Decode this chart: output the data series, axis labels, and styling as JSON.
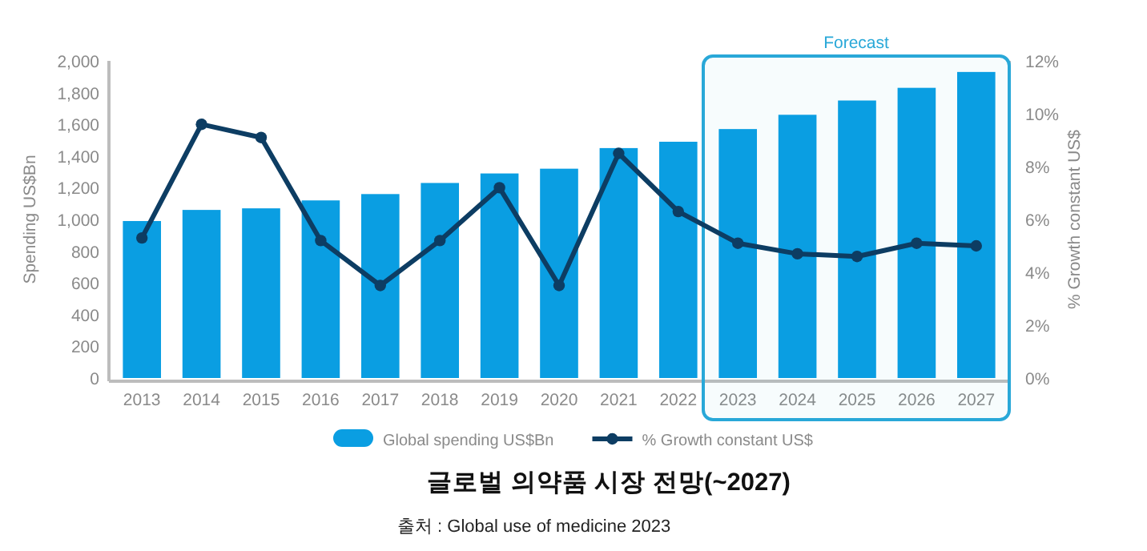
{
  "chart_data": {
    "type": "bar",
    "title": "글로벌 의약품 시장 전망(~2027)",
    "ylabel": "Spending US$Bn",
    "y2label": "% Growth constant US$",
    "annotations": [
      "출처 : Global use of medicine 2023"
    ],
    "categories": [
      "2013",
      "2014",
      "2015",
      "2016",
      "2017",
      "2018",
      "2019",
      "2020",
      "2021",
      "2022",
      "2023",
      "2024",
      "2025",
      "2026",
      "2027"
    ],
    "series": [
      {
        "name": "Global spending US$Bn",
        "color": "#0a9ee2",
        "values": [
          990,
          1060,
          1070,
          1120,
          1160,
          1230,
          1290,
          1320,
          1450,
          1490,
          1570,
          1660,
          1750,
          1830,
          1930
        ]
      },
      {
        "name": "% Growth constant US$",
        "type": "line",
        "axis": "y2",
        "color": "#0d3d63",
        "marker": "circle",
        "values": [
          5.3,
          9.6,
          9.1,
          5.2,
          3.5,
          5.2,
          7.2,
          3.5,
          8.5,
          6.3,
          5.1,
          4.7,
          4.6,
          5.1,
          5.0
        ]
      }
    ],
    "ylim": [
      0,
      2000
    ],
    "yticks": [
      {
        "value": 0,
        "label": "0"
      },
      {
        "value": 200,
        "label": "200"
      },
      {
        "value": 400,
        "label": "400"
      },
      {
        "value": 600,
        "label": "600"
      },
      {
        "value": 800,
        "label": "800"
      },
      {
        "value": 1000,
        "label": "1,000"
      },
      {
        "value": 1200,
        "label": "1,200"
      },
      {
        "value": 1400,
        "label": "1,400"
      },
      {
        "value": 1600,
        "label": "1,600"
      },
      {
        "value": 1800,
        "label": "1,800"
      },
      {
        "value": 2000,
        "label": "2,000"
      }
    ],
    "y2lim": [
      0,
      12
    ],
    "y2ticks": [
      {
        "value": 0,
        "label": "0%"
      },
      {
        "value": 2,
        "label": "2%"
      },
      {
        "value": 4,
        "label": "4%"
      },
      {
        "value": 6,
        "label": "6%"
      },
      {
        "value": 8,
        "label": "8%"
      },
      {
        "value": 10,
        "label": "10%"
      },
      {
        "value": 12,
        "label": "12%"
      }
    ],
    "bands": [
      {
        "axis": "x",
        "from": "2023",
        "to": "2027",
        "label": "Forecast",
        "color": "#29a8d8"
      }
    ],
    "grid": false,
    "legend": "bottom"
  }
}
